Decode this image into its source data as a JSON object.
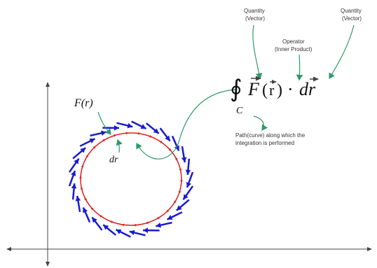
{
  "annotations": {
    "quantity_left": [
      "Quantity",
      "(Vector)"
    ],
    "operator": [
      "Operator",
      "(Inner Product)"
    ],
    "quantity_right": [
      "Quantity",
      "(Vector)"
    ],
    "path": [
      "Path(curve) along which the",
      "integration is performed"
    ]
  },
  "formula": {
    "integral": "∮",
    "field": "F",
    "open": "(",
    "arg": "r",
    "close": ")",
    "dot": "·",
    "differential": "dr",
    "contour": "C"
  },
  "circle_labels": {
    "field": "F(r)",
    "differential": "dr"
  }
}
